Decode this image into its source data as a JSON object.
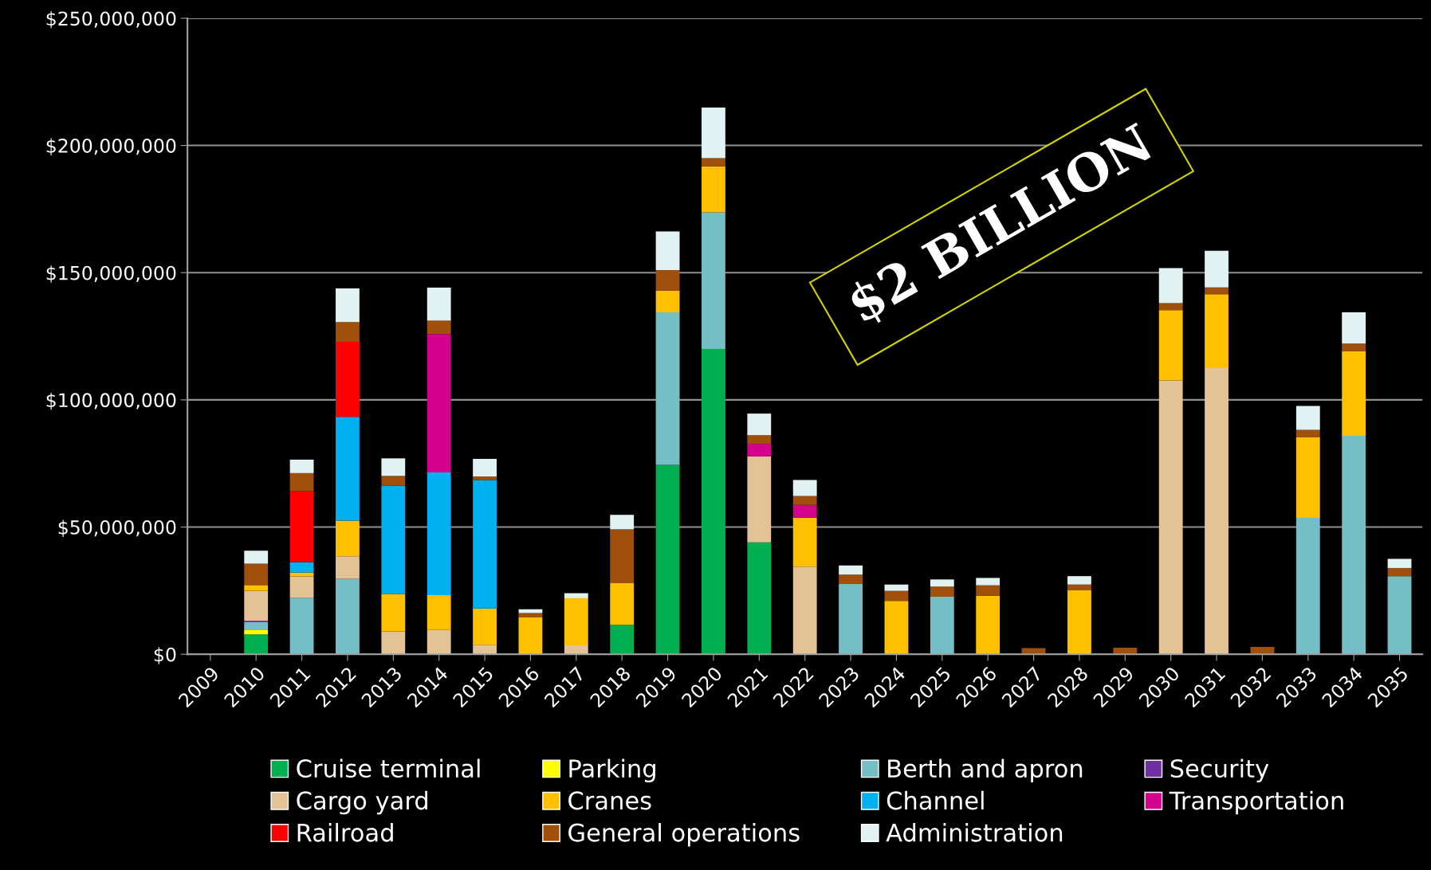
{
  "chart_data": {
    "type": "bar",
    "stacked": true,
    "categories": [
      "2009",
      "2010",
      "2011",
      "2012",
      "2013",
      "2014",
      "2015",
      "2016",
      "2017",
      "2018",
      "2019",
      "2020",
      "2021",
      "2022",
      "2023",
      "2024",
      "2025",
      "2026",
      "2027",
      "2028",
      "2029",
      "2030",
      "2031",
      "2032",
      "2033",
      "2034",
      "2035"
    ],
    "series": [
      {
        "name": "Cruise terminal",
        "color": "#00b050",
        "values": [
          null,
          7800000,
          null,
          null,
          null,
          null,
          null,
          null,
          null,
          11600000,
          74400000,
          120000000,
          44000000,
          null,
          null,
          null,
          null,
          null,
          null,
          null,
          null,
          null,
          null,
          null,
          null,
          null,
          null
        ]
      },
      {
        "name": "Parking",
        "color": "#ffff00",
        "values": [
          null,
          1900000,
          null,
          null,
          null,
          null,
          null,
          null,
          null,
          null,
          null,
          null,
          null,
          null,
          null,
          null,
          null,
          null,
          null,
          null,
          null,
          null,
          null,
          null,
          null,
          null,
          null
        ]
      },
      {
        "name": "Berth and apron",
        "color": "#74bfc5",
        "values": [
          null,
          2900000,
          22200000,
          29600000,
          null,
          null,
          null,
          null,
          null,
          null,
          60000000,
          53700000,
          null,
          null,
          27600000,
          null,
          22600000,
          null,
          null,
          null,
          null,
          null,
          null,
          null,
          53600000,
          85900000,
          30700000
        ]
      },
      {
        "name": "Security",
        "color": "#7030a0",
        "values": [
          null,
          500000,
          null,
          null,
          null,
          null,
          null,
          null,
          null,
          null,
          null,
          null,
          null,
          null,
          null,
          null,
          null,
          null,
          null,
          null,
          null,
          null,
          null,
          null,
          null,
          null,
          null
        ]
      },
      {
        "name": "Cargo yard",
        "color": "#e3c295",
        "values": [
          null,
          11800000,
          8400000,
          8900000,
          9000000,
          9500000,
          3700000,
          null,
          3500000,
          null,
          null,
          null,
          33800000,
          34400000,
          null,
          null,
          null,
          null,
          null,
          null,
          null,
          107600000,
          112500000,
          null,
          null,
          null,
          null
        ]
      },
      {
        "name": "Cranes",
        "color": "#ffc000",
        "values": [
          null,
          2300000,
          1500000,
          14000000,
          14700000,
          13700000,
          14300000,
          14600000,
          18500000,
          16500000,
          8500000,
          18100000,
          null,
          19300000,
          null,
          21000000,
          null,
          23000000,
          null,
          25300000,
          null,
          27700000,
          29000000,
          null,
          31800000,
          33200000,
          null
        ]
      },
      {
        "name": "Channel",
        "color": "#00b0f0",
        "values": [
          null,
          null,
          4100000,
          40800000,
          42600000,
          48300000,
          50500000,
          null,
          null,
          null,
          null,
          null,
          null,
          null,
          null,
          null,
          null,
          null,
          null,
          null,
          null,
          null,
          null,
          null,
          null,
          null,
          null
        ]
      },
      {
        "name": "Transportation",
        "color": "#d6008f",
        "values": [
          null,
          null,
          null,
          null,
          null,
          54400000,
          null,
          null,
          null,
          null,
          null,
          null,
          4900000,
          5000000,
          null,
          null,
          null,
          null,
          null,
          null,
          null,
          null,
          null,
          null,
          null,
          null,
          null
        ]
      },
      {
        "name": "Railroad",
        "color": "#ff0000",
        "values": [
          null,
          null,
          27900000,
          29500000,
          null,
          null,
          null,
          null,
          null,
          null,
          null,
          null,
          null,
          null,
          null,
          null,
          null,
          null,
          null,
          null,
          null,
          null,
          null,
          null,
          null,
          null,
          null
        ]
      },
      {
        "name": "General operations",
        "color": "#a0500a",
        "values": [
          null,
          8400000,
          7100000,
          7800000,
          3800000,
          5200000,
          1400000,
          1600000,
          null,
          21000000,
          8100000,
          3200000,
          3400000,
          3500000,
          3700000,
          3900000,
          4000000,
          4100000,
          2400000,
          2100000,
          2600000,
          2700000,
          2700000,
          2900000,
          2800000,
          3000000,
          3200000
        ]
      },
      {
        "name": "Administration",
        "color": "#e2f1f1",
        "values": [
          null,
          5100000,
          5300000,
          13200000,
          6900000,
          13000000,
          6900000,
          1500000,
          2000000,
          5700000,
          15200000,
          19900000,
          8500000,
          6300000,
          3600000,
          2500000,
          2800000,
          2900000,
          null,
          3300000,
          null,
          13800000,
          14400000,
          null,
          9400000,
          12300000,
          3600000
        ]
      }
    ],
    "ylim": [
      0,
      250000000
    ],
    "yticks": [
      {
        "value": 0,
        "label": "$0"
      },
      {
        "value": 50000000,
        "label": "$50,000,000"
      },
      {
        "value": 100000000,
        "label": "$100,000,000"
      },
      {
        "value": 150000000,
        "label": "$150,000,000"
      },
      {
        "value": 200000000,
        "label": "$200,000,000"
      },
      {
        "value": 250000000,
        "label": "$250,000,000"
      }
    ],
    "grid": "y",
    "legend": "bottom",
    "annotations": [
      "$2 BILLION"
    ]
  }
}
